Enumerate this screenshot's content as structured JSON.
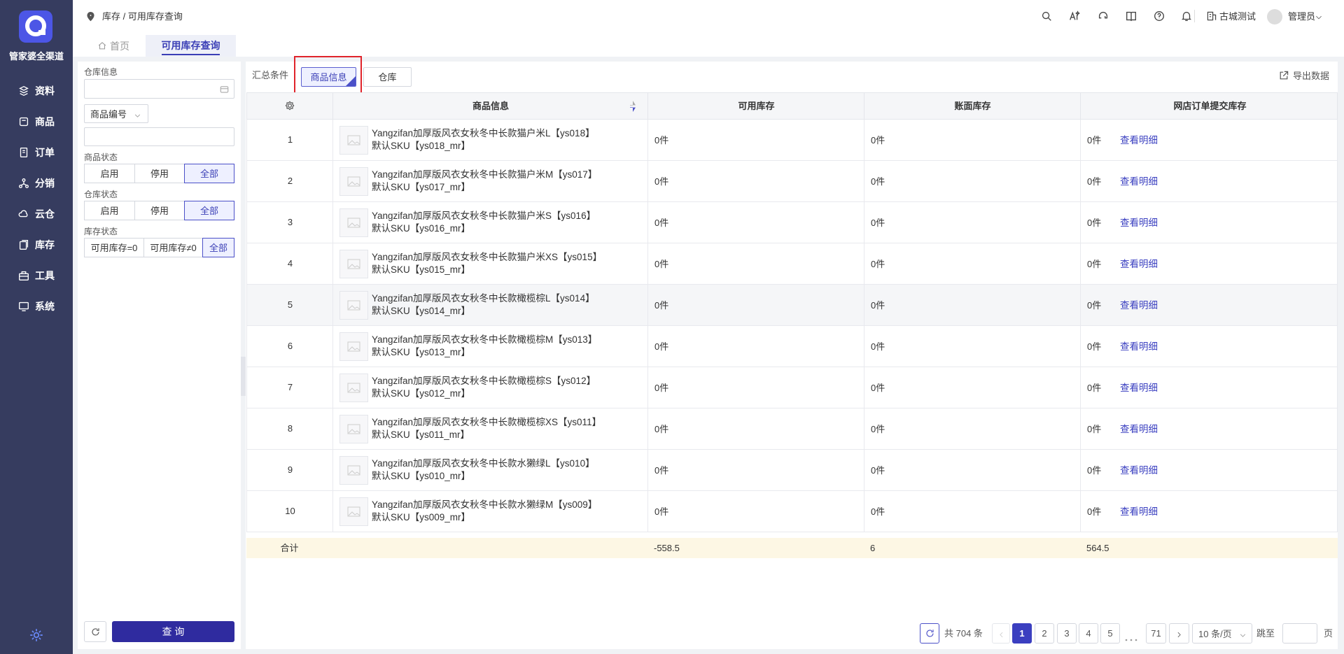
{
  "sidebar": {
    "brand": "管家婆全渠道",
    "menu": [
      "资料",
      "商品",
      "订单",
      "分销",
      "云仓",
      "库存",
      "工具",
      "系统"
    ]
  },
  "header": {
    "breadcrumb": "库存 / 可用库存查询",
    "company": "古城测试",
    "user": "管理员"
  },
  "tabs": [
    "首页",
    "可用库存查询"
  ],
  "filters": {
    "warehouse_label": "仓库信息",
    "code_select": "商品编号",
    "product_status": {
      "label": "商品状态",
      "options": [
        "启用",
        "停用",
        "全部"
      ]
    },
    "warehouse_status": {
      "label": "仓库状态",
      "options": [
        "启用",
        "停用",
        "全部"
      ]
    },
    "stock_status": {
      "label": "库存状态",
      "options": [
        "可用库存=0",
        "可用库存≠0",
        "全部"
      ]
    },
    "query_button": "查 询"
  },
  "toolbar": {
    "label": "汇总条件",
    "options": [
      "商品信息",
      "仓库"
    ],
    "export": "导出数据"
  },
  "table": {
    "columns": [
      "商品信息",
      "可用库存",
      "账面库存",
      "网店订单提交库存"
    ],
    "rows": [
      {
        "index": 1,
        "name": "Yangzifan加厚版风衣女秋冬中长款猫户米L【ys018】",
        "sku": "默认SKU【ys018_mr】",
        "available": "0件",
        "book": "0件",
        "online": "0件"
      },
      {
        "index": 2,
        "name": "Yangzifan加厚版风衣女秋冬中长款猫户米M【ys017】",
        "sku": "默认SKU【ys017_mr】",
        "available": "0件",
        "book": "0件",
        "online": "0件"
      },
      {
        "index": 3,
        "name": "Yangzifan加厚版风衣女秋冬中长款猫户米S【ys016】",
        "sku": "默认SKU【ys016_mr】",
        "available": "0件",
        "book": "0件",
        "online": "0件"
      },
      {
        "index": 4,
        "name": "Yangzifan加厚版风衣女秋冬中长款猫户米XS【ys015】",
        "sku": "默认SKU【ys015_mr】",
        "available": "0件",
        "book": "0件",
        "online": "0件"
      },
      {
        "index": 5,
        "name": "Yangzifan加厚版风衣女秋冬中长款橄榄棕L【ys014】",
        "sku": "默认SKU【ys014_mr】",
        "available": "0件",
        "book": "0件",
        "online": "0件"
      },
      {
        "index": 6,
        "name": "Yangzifan加厚版风衣女秋冬中长款橄榄棕M【ys013】",
        "sku": "默认SKU【ys013_mr】",
        "available": "0件",
        "book": "0件",
        "online": "0件"
      },
      {
        "index": 7,
        "name": "Yangzifan加厚版风衣女秋冬中长款橄榄棕S【ys012】",
        "sku": "默认SKU【ys012_mr】",
        "available": "0件",
        "book": "0件",
        "online": "0件"
      },
      {
        "index": 8,
        "name": "Yangzifan加厚版风衣女秋冬中长款橄榄棕XS【ys011】",
        "sku": "默认SKU【ys011_mr】",
        "available": "0件",
        "book": "0件",
        "online": "0件"
      },
      {
        "index": 9,
        "name": "Yangzifan加厚版风衣女秋冬中长款水獭绿L【ys010】",
        "sku": "默认SKU【ys010_mr】",
        "available": "0件",
        "book": "0件",
        "online": "0件"
      },
      {
        "index": 10,
        "name": "Yangzifan加厚版风衣女秋冬中长款水獭绿M【ys009】",
        "sku": "默认SKU【ys009_mr】",
        "available": "0件",
        "book": "0件",
        "online": "0件"
      }
    ],
    "detail_link": "查看明细",
    "total": {
      "label": "合计",
      "available": -558.5,
      "book": 6,
      "online": 564.5
    }
  },
  "pagination": {
    "summary": "共 704 条",
    "pages": [
      1,
      2,
      3,
      4,
      5,
      71
    ],
    "page_size": "10 条/页",
    "jump_label": "跳至",
    "page_suffix": "页"
  }
}
